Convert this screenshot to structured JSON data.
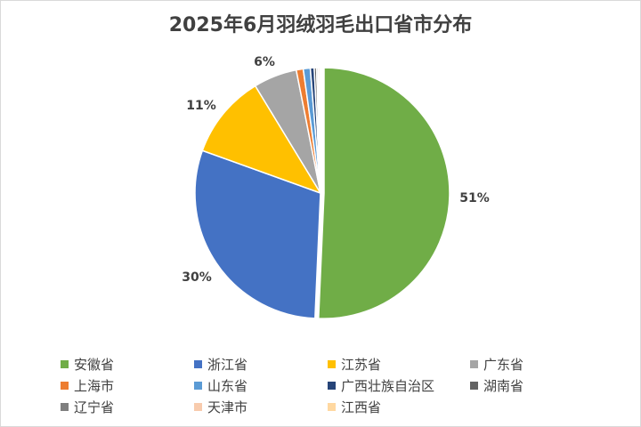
{
  "chart_data": {
    "type": "pie",
    "title": "2025年6月羽绒羽毛出口省市分布",
    "series": [
      {
        "name": "安徽省",
        "value": 50.7,
        "label": "51%",
        "color": "#70ad47"
      },
      {
        "name": "浙江省",
        "value": 29.8,
        "label": "30%",
        "color": "#4472c4"
      },
      {
        "name": "江苏省",
        "value": 10.8,
        "label": "11%",
        "color": "#ffc000"
      },
      {
        "name": "广东省",
        "value": 5.6,
        "label": "6%",
        "color": "#a5a5a5"
      },
      {
        "name": "上海市",
        "value": 0.9,
        "label": "",
        "color": "#ed7d31"
      },
      {
        "name": "山东省",
        "value": 0.9,
        "label": "",
        "color": "#5b9bd5"
      },
      {
        "name": "广西壮族自治区",
        "value": 0.5,
        "label": "",
        "color": "#264478"
      },
      {
        "name": "湖南省",
        "value": 0.3,
        "label": "",
        "color": "#636363"
      },
      {
        "name": "辽宁省",
        "value": 0.2,
        "label": "",
        "color": "#7f7f7f"
      },
      {
        "name": "天津市",
        "value": 0.2,
        "label": "",
        "color": "#f8cbad"
      },
      {
        "name": "江西省",
        "value": 0.1,
        "label": "",
        "color": "#ffd8a0"
      }
    ],
    "legend_position": "bottom"
  }
}
